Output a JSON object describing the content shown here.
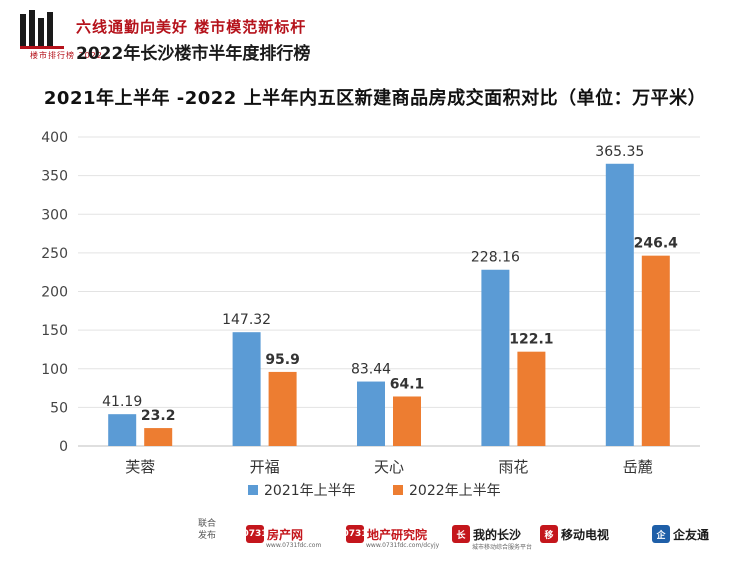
{
  "header": {
    "logo_text": "楼市排行榜",
    "logo_year": "2022",
    "slogan": "六线通勤向美好 楼市模范新标杆",
    "subtitle": "2022年长沙楼市半年度排行榜"
  },
  "chart_data": {
    "type": "bar",
    "title": "2021年上半年 -2022 上半年内五区新建商品房成交面积对比（单位：万平米）",
    "categories": [
      "芙蓉",
      "开福",
      "天心",
      "雨花",
      "岳麓"
    ],
    "series": [
      {
        "name": "2021年上半年",
        "color": "#5b9bd5",
        "values": [
          41.19,
          147.32,
          83.44,
          228.16,
          365.35
        ],
        "labels": [
          "41.19",
          "147.32",
          "83.44",
          "228.16",
          "365.35"
        ]
      },
      {
        "name": "2022年上半年",
        "color": "#ed7d31",
        "values": [
          23.2,
          95.9,
          64.1,
          122.1,
          246.4
        ],
        "labels": [
          "23.2",
          "95.9",
          "64.1",
          "122.1",
          "246.4"
        ]
      }
    ],
    "yticks": [
      "0",
      "50",
      "100",
      "150",
      "200",
      "250",
      "300",
      "350",
      "400"
    ],
    "ylim": [
      0,
      400
    ],
    "grid": true,
    "legend_position": "bottom"
  },
  "footer": {
    "joint_label": "联合发布",
    "partners": [
      {
        "mark": "0731",
        "name": "房产网",
        "small": "www.0731fdc.com",
        "red": true,
        "blue": false
      },
      {
        "mark": "0731",
        "name": "地产研究院",
        "small": "www.0731fdc.com/dcyjy",
        "red": true,
        "blue": false
      },
      {
        "mark": "长",
        "name": "我的长沙",
        "small": "城市移动综合服务平台",
        "red": false,
        "blue": false
      },
      {
        "mark": "移",
        "name": "移动电视",
        "small": "",
        "red": false,
        "blue": false
      },
      {
        "mark": "企",
        "name": "企友通",
        "small": "",
        "red": false,
        "blue": true
      }
    ]
  }
}
